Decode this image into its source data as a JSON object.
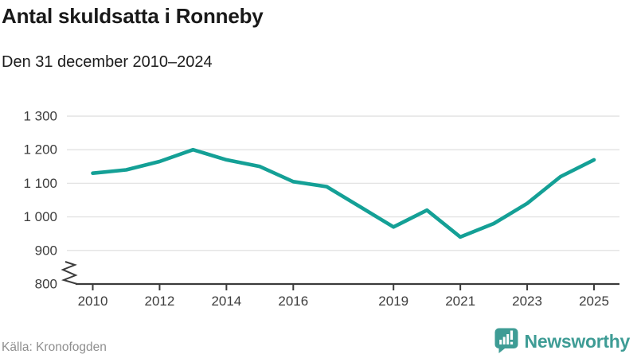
{
  "header": {
    "title": "Antal skuldsatta i Ronneby",
    "subtitle": "Den 31 december 2010–2024"
  },
  "chart_data": {
    "type": "line",
    "title": "Antal skuldsatta i Ronneby",
    "subtitle": "Den 31 december 2010–2024",
    "x": [
      2010,
      2011,
      2012,
      2013,
      2014,
      2015,
      2016,
      2017,
      2018,
      2019,
      2020,
      2021,
      2022,
      2023,
      2024,
      2025
    ],
    "values": [
      1130,
      1140,
      1165,
      1200,
      1170,
      1150,
      1105,
      1090,
      1030,
      970,
      1020,
      940,
      980,
      1040,
      1120,
      1170
    ],
    "x_tick_labels": [
      "2010",
      "2012",
      "2014",
      "2016",
      "2019",
      "2021",
      "2023",
      "2025"
    ],
    "y_ticks": [
      800,
      900,
      1000,
      1100,
      1200,
      1300
    ],
    "y_tick_labels": [
      "800",
      "900",
      "1 000",
      "1 100",
      "1 200",
      "1 300"
    ],
    "ylim": [
      800,
      1300
    ],
    "xlim": [
      2010,
      2025
    ],
    "grid": "horizontal",
    "legend": "none",
    "axis_break_at_bottom": true,
    "line_color": "#14a096",
    "gridline_color": "#e3e3e3",
    "axis_color": "#3b3b3b",
    "tick_label_color": "#3d3d3d"
  },
  "footer": {
    "source": "Källa: Kronofogden",
    "brand": {
      "name": "Newsworthy",
      "color": "#3e9c95",
      "icon": "bar-chart-speech-bubble-icon"
    }
  }
}
